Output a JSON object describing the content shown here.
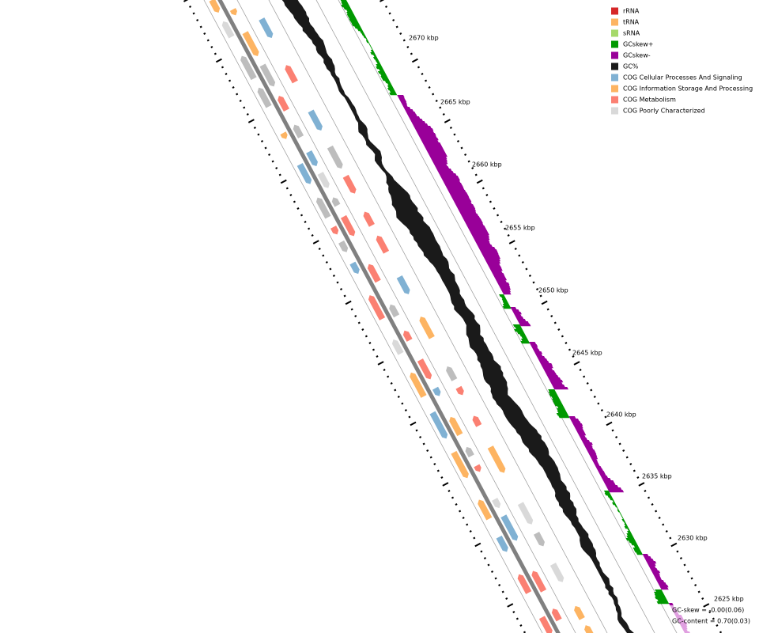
{
  "legend": [
    {
      "label": "rRNA",
      "color": "#d62728"
    },
    {
      "label": "tRNA",
      "color": "#fdb462"
    },
    {
      "label": "sRNA",
      "color": "#a6d96a"
    },
    {
      "label": "GCskew+",
      "color": "#009900"
    },
    {
      "label": "GCskew-",
      "color": "#990099"
    },
    {
      "label": "GC%",
      "color": "#1a1a1a"
    },
    {
      "label": "COG Cellular Processes And Signaling",
      "color": "#80b1d3"
    },
    {
      "label": "COG Information Storage And Processing",
      "color": "#fdb462"
    },
    {
      "label": "COG Metabolism",
      "color": "#fb8072"
    },
    {
      "label": "COG Poorly Characterized",
      "color": "#d9d9d9"
    }
  ],
  "scale_labels": [
    "2670 kbp",
    "2665 kbp",
    "2660 kbp",
    "2655 kbp",
    "2650 kbp",
    "2645 kbp",
    "2640 kbp",
    "2635 kbp",
    "2630 kbp",
    "2625 kbp"
  ],
  "stats": {
    "gc_skew": "GC-skew = -0.00(0.06)",
    "gc_content": "GC-content = 0.70(0.03)"
  }
}
